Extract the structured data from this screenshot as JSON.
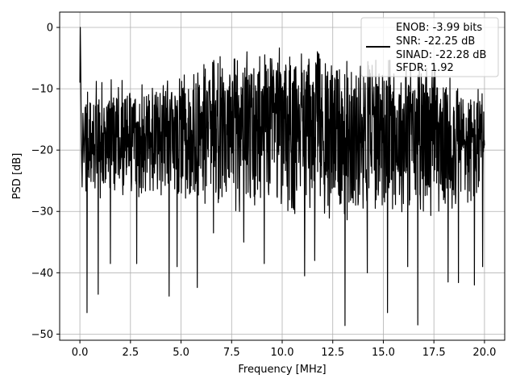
{
  "chart_data": {
    "type": "line",
    "title": "",
    "xlabel": "Frequency [MHz]",
    "ylabel": "PSD [dB]",
    "xlim": [
      -1.0,
      21.0
    ],
    "ylim": [
      -51.0,
      2.5
    ],
    "xticks": [
      0.0,
      2.5,
      5.0,
      7.5,
      10.0,
      12.5,
      15.0,
      17.5,
      20.0
    ],
    "xtick_labels": [
      "0.0",
      "2.5",
      "5.0",
      "7.5",
      "10.0",
      "12.5",
      "15.0",
      "17.5",
      "20.0"
    ],
    "yticks": [
      0,
      -10,
      -20,
      -30,
      -40,
      -50
    ],
    "ytick_labels": [
      "0",
      "−10",
      "−20",
      "−30",
      "−40",
      "−50"
    ],
    "grid": true,
    "legend": {
      "placement": "upper-right",
      "entries": [
        "ENOB: -3.99 bits",
        "SNR: -22.25 dB",
        "SINAD: -22.28 dB",
        "SFDR: 1.92"
      ]
    },
    "series": [
      {
        "color": "#000000",
        "x_range": [
          0.0,
          20.0
        ],
        "peak": {
          "x": 0.02,
          "y": 0.0
        },
        "envelope_upper": [
          {
            "x": 0.3,
            "y": -12
          },
          {
            "x": 2.5,
            "y": -11
          },
          {
            "x": 5.0,
            "y": -10
          },
          {
            "x": 7.5,
            "y": -7
          },
          {
            "x": 10.0,
            "y": -6
          },
          {
            "x": 12.5,
            "y": -7
          },
          {
            "x": 15.0,
            "y": -8
          },
          {
            "x": 17.5,
            "y": -9
          },
          {
            "x": 20.0,
            "y": -12
          }
        ],
        "envelope_lower": [
          {
            "x": 0.3,
            "y": -28
          },
          {
            "x": 2.5,
            "y": -28
          },
          {
            "x": 5.0,
            "y": -28
          },
          {
            "x": 7.5,
            "y": -30
          },
          {
            "x": 10.0,
            "y": -31
          },
          {
            "x": 12.5,
            "y": -32
          },
          {
            "x": 15.0,
            "y": -30
          },
          {
            "x": 17.5,
            "y": -31
          },
          {
            "x": 20.0,
            "y": -30
          }
        ],
        "deep_nulls": [
          {
            "x": 0.35,
            "y": -46.5
          },
          {
            "x": 0.9,
            "y": -43.5
          },
          {
            "x": 1.5,
            "y": -38.5
          },
          {
            "x": 2.8,
            "y": -38.5
          },
          {
            "x": 4.4,
            "y": -43.8
          },
          {
            "x": 4.8,
            "y": -39.0
          },
          {
            "x": 5.8,
            "y": -42.4
          },
          {
            "x": 6.6,
            "y": -33.5
          },
          {
            "x": 8.1,
            "y": -35.0
          },
          {
            "x": 9.1,
            "y": -38.5
          },
          {
            "x": 11.1,
            "y": -40.5
          },
          {
            "x": 11.6,
            "y": -38.0
          },
          {
            "x": 13.1,
            "y": -48.6
          },
          {
            "x": 14.2,
            "y": -40.0
          },
          {
            "x": 15.2,
            "y": -46.5
          },
          {
            "x": 16.2,
            "y": -39.0
          },
          {
            "x": 16.7,
            "y": -48.5
          },
          {
            "x": 18.2,
            "y": -41.5
          },
          {
            "x": 18.7,
            "y": -41.6
          },
          {
            "x": 19.5,
            "y": -42.0
          },
          {
            "x": 19.9,
            "y": -39.0
          }
        ]
      }
    ]
  }
}
